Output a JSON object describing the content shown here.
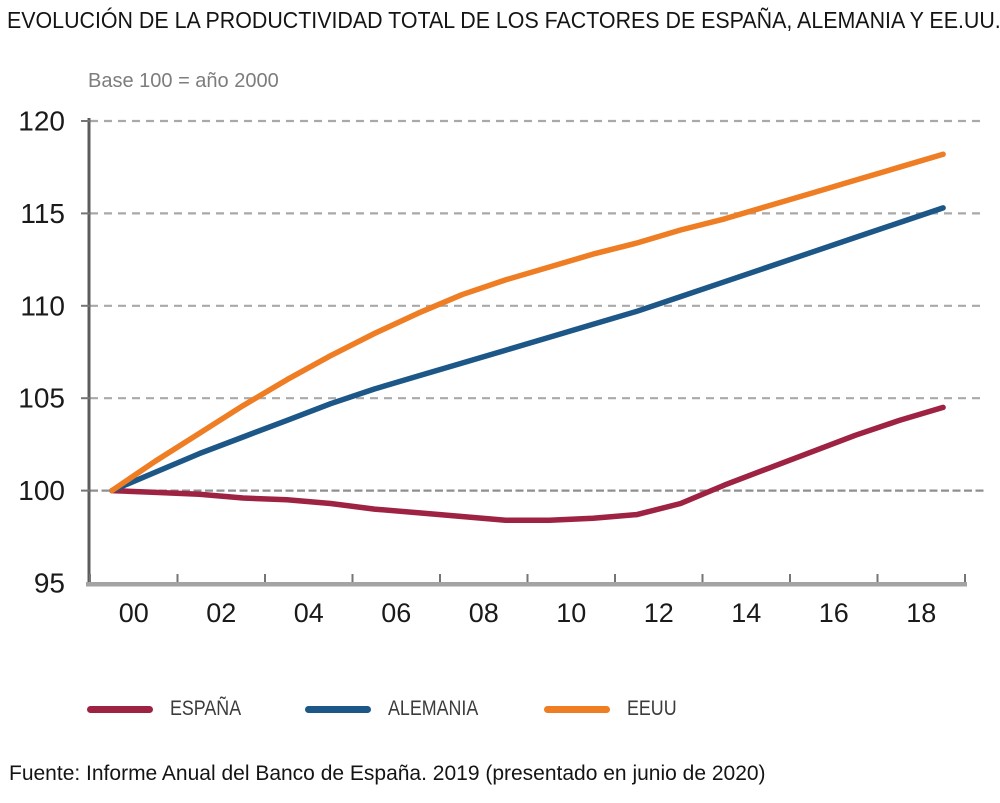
{
  "title": "EVOLUCIÓN DE LA PRODUCTIVIDAD TOTAL DE LOS FACTORES DE ESPAÑA, ALEMANIA Y EE.UU.",
  "subtitle": "Base 100 = año 2000",
  "source": "Fuente: Informe Anual del Banco de España. 2019 (presentado en junio de 2020)",
  "colors": {
    "espana": "#9E2343",
    "alemania": "#1C5788",
    "eeuu": "#EE7D23",
    "gridline": "#A9A9A9",
    "base_gridline": "#8F8F8F",
    "y_axis": "#5C5C5C",
    "x_axis": "#A3A3A3",
    "tick": "#757575",
    "axis_text": "#1A1A1A"
  },
  "chart_data": {
    "type": "line",
    "title": "EVOLUCIÓN DE LA PRODUCTIVIDAD TOTAL DE LOS FACTORES DE ESPAÑA, ALEMANIA Y EE.UU.",
    "subtitle": "Base 100 = año 2000",
    "x": [
      2000,
      2001,
      2002,
      2003,
      2004,
      2005,
      2006,
      2007,
      2008,
      2009,
      2010,
      2011,
      2012,
      2013,
      2014,
      2015,
      2016,
      2017,
      2018,
      2019
    ],
    "xtick_labels": [
      "00",
      "02",
      "04",
      "06",
      "08",
      "10",
      "12",
      "14",
      "16",
      "18"
    ],
    "yticks": [
      95,
      100,
      105,
      110,
      115,
      120
    ],
    "gridline_values": [
      100,
      105,
      110,
      115,
      120
    ],
    "ylim": [
      95,
      120
    ],
    "grid": "horizontal dashed",
    "legend_position": "bottom",
    "series": [
      {
        "name": "ESPAÑA",
        "color": "#9E2343",
        "values": [
          100,
          99.9,
          99.8,
          99.6,
          99.5,
          99.3,
          99.0,
          98.8,
          98.6,
          98.4,
          98.4,
          98.5,
          98.7,
          99.3,
          100.3,
          101.2,
          102.1,
          103.0,
          103.8,
          104.5
        ]
      },
      {
        "name": "ALEMANIA",
        "color": "#1C5788",
        "values": [
          100,
          101.0,
          102.0,
          102.9,
          103.8,
          104.7,
          105.5,
          106.2,
          106.9,
          107.6,
          108.3,
          109.0,
          109.7,
          110.5,
          111.3,
          112.1,
          112.9,
          113.7,
          114.5,
          115.3
        ]
      },
      {
        "name": "EEUU",
        "color": "#EE7D23",
        "values": [
          100,
          101.6,
          103.1,
          104.6,
          106.0,
          107.3,
          108.5,
          109.6,
          110.6,
          111.4,
          112.1,
          112.8,
          113.4,
          114.1,
          114.7,
          115.4,
          116.1,
          116.8,
          117.5,
          118.2
        ]
      }
    ]
  },
  "legend": {
    "items": [
      {
        "label": "ESPAÑA"
      },
      {
        "label": "ALEMANIA"
      },
      {
        "label": "EEUU"
      }
    ]
  }
}
